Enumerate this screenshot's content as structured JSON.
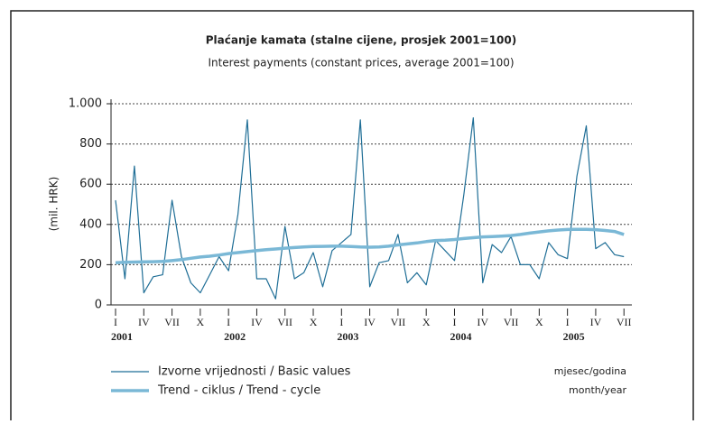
{
  "chart_data": {
    "type": "line",
    "title": "Plaćanje kamata (stalne cijene, prosjek 2001=100)",
    "subtitle": "Interest payments (constant prices, average 2001=100)",
    "y_label": "(mil. HRK)",
    "x_label": "mjesec/godina",
    "x_label_en": "month/year",
    "categories": [
      "I",
      null,
      null,
      "IV",
      null,
      null,
      "VII",
      null,
      null,
      "X",
      null,
      null,
      "I",
      null,
      null,
      "IV",
      null,
      null,
      "VII",
      null,
      null,
      "X",
      null,
      null,
      "I",
      null,
      null,
      "IV",
      null,
      null,
      "VII",
      null,
      null,
      "X",
      null,
      null,
      "I",
      null,
      null,
      "IV",
      null,
      null,
      "VII",
      null,
      null,
      "X",
      null,
      null,
      "I",
      null,
      null,
      "IV",
      null,
      null,
      "VII"
    ],
    "years": [
      "2001",
      "2002",
      "2003",
      "2004",
      "2005"
    ],
    "series": [
      {
        "name": "Izvorne vrijednosti / Basic values",
        "color": "#1f6e96",
        "values": [
          520,
          130,
          690,
          60,
          140,
          150,
          520,
          240,
          110,
          60,
          150,
          240,
          170,
          450,
          920,
          130,
          130,
          30,
          390,
          130,
          160,
          260,
          90,
          270,
          310,
          350,
          920,
          90,
          210,
          220,
          350,
          110,
          160,
          100,
          320,
          270,
          220,
          550,
          930,
          110,
          300,
          260,
          340,
          200,
          200,
          130,
          310,
          250,
          230,
          640,
          890,
          280,
          310,
          250,
          240
        ]
      },
      {
        "name": "Trend - ciklus / Trend - cycle",
        "color": "#7ab8d6",
        "values": [
          210,
          212,
          213,
          214,
          215,
          216,
          220,
          225,
          232,
          238,
          242,
          248,
          255,
          260,
          265,
          270,
          275,
          278,
          282,
          285,
          288,
          290,
          291,
          292,
          292,
          290,
          288,
          287,
          288,
          292,
          298,
          303,
          308,
          315,
          320,
          322,
          325,
          330,
          334,
          338,
          340,
          342,
          345,
          350,
          357,
          363,
          368,
          372,
          375,
          376,
          376,
          374,
          370,
          365,
          350
        ]
      }
    ],
    "ylim": [
      0,
      1000
    ],
    "yticks": [
      0,
      200,
      400,
      600,
      800,
      {
        "value": 1000,
        "label": "1.000"
      }
    ],
    "grid": true
  }
}
